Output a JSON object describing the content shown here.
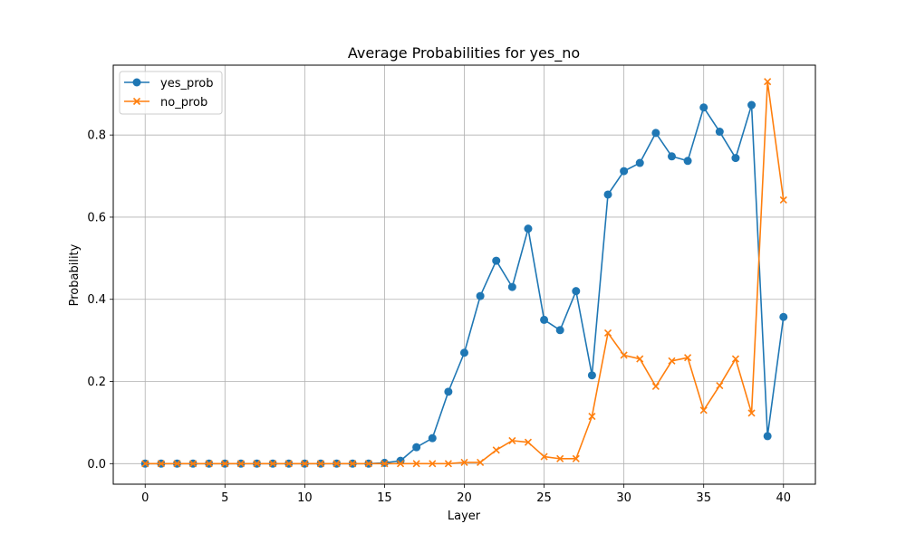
{
  "chart_data": {
    "type": "line",
    "title": "Average Probabilities for yes_no",
    "xlabel": "Layer",
    "ylabel": "Probability",
    "xlim": [
      -2,
      42
    ],
    "ylim": [
      -0.05,
      0.97
    ],
    "x_ticks": [
      0,
      5,
      10,
      15,
      20,
      25,
      30,
      35,
      40
    ],
    "y_ticks": [
      0.0,
      0.2,
      0.4,
      0.6,
      0.8
    ],
    "x_tick_labels": [
      "0",
      "5",
      "10",
      "15",
      "20",
      "25",
      "30",
      "35",
      "40"
    ],
    "y_tick_labels": [
      "0.0",
      "0.2",
      "0.4",
      "0.6",
      "0.8"
    ],
    "grid": true,
    "legend_position": "top-left",
    "x": [
      0,
      1,
      2,
      3,
      4,
      5,
      6,
      7,
      8,
      9,
      10,
      11,
      12,
      13,
      14,
      15,
      16,
      17,
      18,
      19,
      20,
      21,
      22,
      23,
      24,
      25,
      26,
      27,
      28,
      29,
      30,
      31,
      32,
      33,
      34,
      35,
      36,
      37,
      38,
      39,
      40
    ],
    "series": [
      {
        "name": "yes_prob",
        "color": "#1f77b4",
        "marker": "circle",
        "values": [
          0.0,
          0.0,
          0.0,
          0.0,
          0.0,
          0.0,
          0.0,
          0.0,
          0.0,
          0.0,
          0.0,
          0.0,
          0.0,
          0.0,
          0.0,
          0.002,
          0.007,
          0.04,
          0.062,
          0.175,
          0.27,
          0.408,
          0.494,
          0.43,
          0.572,
          0.35,
          0.325,
          0.42,
          0.215,
          0.655,
          0.712,
          0.732,
          0.805,
          0.748,
          0.737,
          0.867,
          0.808,
          0.744,
          0.873,
          0.067,
          0.357
        ]
      },
      {
        "name": "no_prob",
        "color": "#ff7f0e",
        "marker": "x",
        "values": [
          0.0,
          0.0,
          0.0,
          0.0,
          0.0,
          0.0,
          0.0,
          0.0,
          0.0,
          0.0,
          0.0,
          0.0,
          0.0,
          0.0,
          0.0,
          0.0,
          0.0,
          0.0,
          0.0,
          0.0,
          0.003,
          0.003,
          0.033,
          0.056,
          0.052,
          0.017,
          0.012,
          0.012,
          0.115,
          0.318,
          0.264,
          0.255,
          0.188,
          0.25,
          0.258,
          0.13,
          0.19,
          0.255,
          0.123,
          0.93,
          0.642
        ]
      }
    ]
  }
}
